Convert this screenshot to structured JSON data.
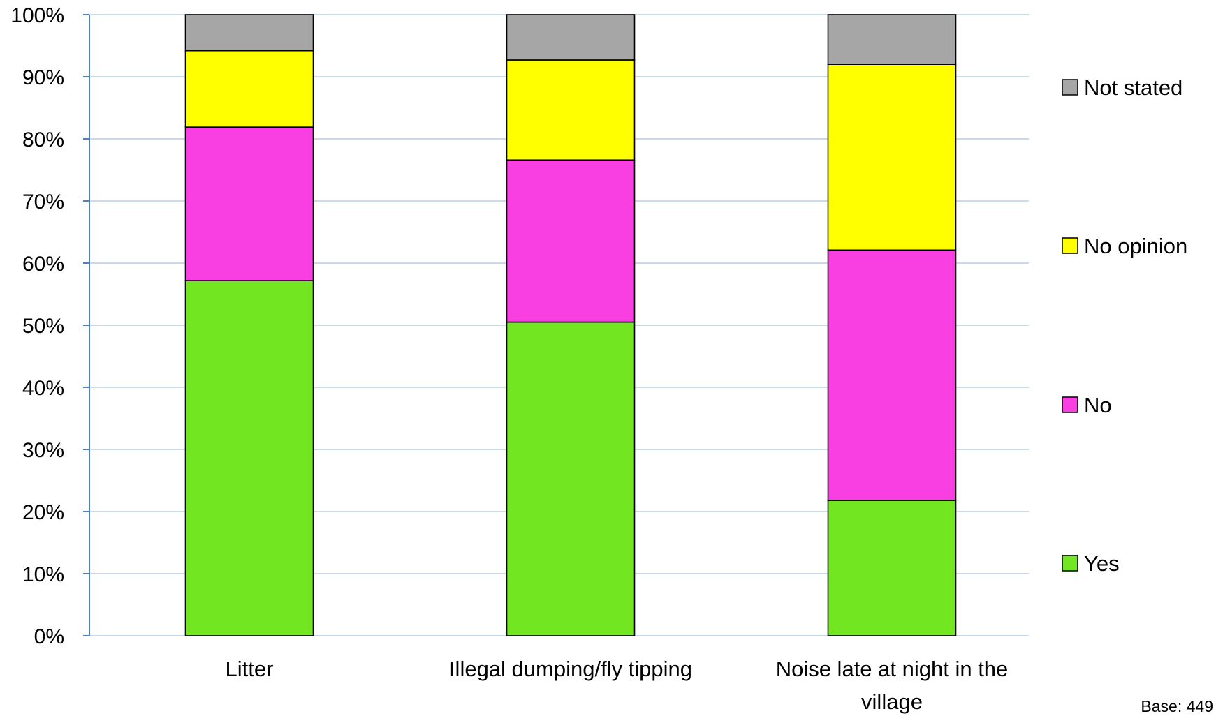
{
  "chart_data": {
    "type": "bar",
    "stacked": true,
    "categories": [
      [
        "Litter"
      ],
      [
        "Illegal dumping/fly tipping"
      ],
      [
        "Noise late at night in the",
        "village"
      ]
    ],
    "series": [
      {
        "name": "Yes",
        "color": "#73E622",
        "values": [
          57.2,
          50.5,
          21.8
        ]
      },
      {
        "name": "No",
        "color": "#F93EE2",
        "values": [
          24.7,
          26.1,
          40.3
        ]
      },
      {
        "name": "No opinion",
        "color": "#FFFF00",
        "values": [
          12.3,
          16.1,
          29.9
        ]
      },
      {
        "name": "Not stated",
        "color": "#A6A6A6",
        "values": [
          5.8,
          7.3,
          8.0
        ]
      }
    ],
    "y_ticks": [
      "0%",
      "10%",
      "20%",
      "30%",
      "40%",
      "50%",
      "60%",
      "70%",
      "80%",
      "90%",
      "100%"
    ],
    "ylim": [
      0,
      100
    ],
    "grid": true,
    "gridline_color": "#B9CDE5",
    "axis_color": "#4F81BD",
    "legend_position": "right",
    "legend_order": [
      "Not stated",
      "No opinion",
      "No",
      "Yes"
    ],
    "note": "Base: 449"
  }
}
